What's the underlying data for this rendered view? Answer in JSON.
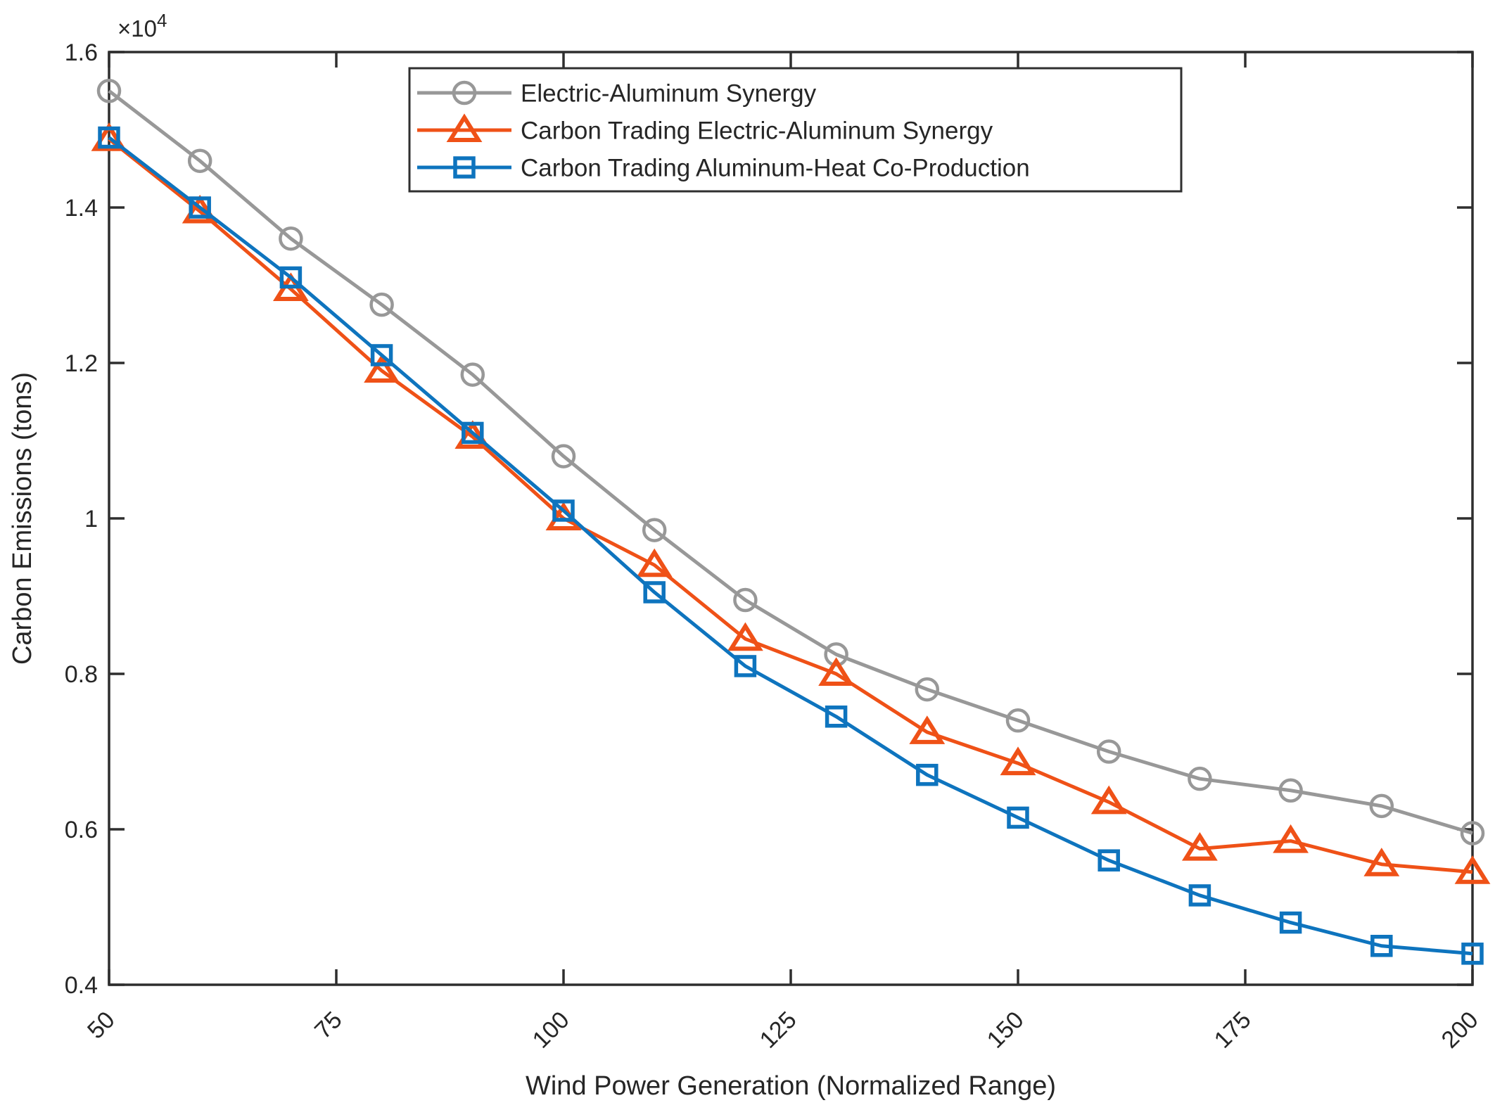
{
  "figure": {
    "background": "#ffffff",
    "axis_color": "#2e2e2e",
    "text_color": "#262626"
  },
  "chart_data": {
    "type": "line",
    "title": "",
    "xlabel": "Wind Power Generation (Normalized Range)",
    "ylabel": "Carbon Emissions (tons)",
    "y_exponent_label": {
      "base": "×10",
      "exp": "4"
    },
    "grid": false,
    "xlim": [
      50,
      200
    ],
    "ylim": [
      4000,
      16000
    ],
    "xticks": {
      "values": [
        50,
        75,
        100,
        125,
        150,
        175,
        200
      ],
      "labels": [
        "50",
        "75",
        "100",
        "125",
        "150",
        "175",
        "200"
      ],
      "rotation": 45
    },
    "yticks": {
      "values": [
        4000,
        6000,
        8000,
        10000,
        12000,
        14000,
        16000
      ],
      "labels": [
        "0.4",
        "0.6",
        "0.8",
        "1",
        "1.2",
        "1.4",
        "1.6"
      ]
    },
    "x": [
      50,
      60,
      70,
      80,
      90,
      100,
      110,
      120,
      130,
      140,
      150,
      160,
      170,
      180,
      190,
      200
    ],
    "series": [
      {
        "name": "Electric-Aluminum Synergy",
        "marker": "circle",
        "color": "#989898",
        "values": [
          15500,
          14600,
          13600,
          12750,
          11850,
          10800,
          9850,
          8950,
          8250,
          7800,
          7400,
          7000,
          6650,
          6500,
          6300,
          5950
        ]
      },
      {
        "name": "Carbon Trading Electric-Aluminum Synergy",
        "marker": "triangle-up",
        "color": "#ef5117",
        "values": [
          14880,
          13950,
          12950,
          11900,
          11050,
          10000,
          9400,
          8450,
          8000,
          7250,
          6850,
          6350,
          5750,
          5850,
          5550,
          5450
        ]
      },
      {
        "name": "Carbon Trading Aluminum-Heat Co-Production",
        "marker": "square",
        "color": "#0e74be",
        "values": [
          14900,
          14000,
          13100,
          12100,
          11100,
          10100,
          9050,
          8100,
          7450,
          6700,
          6150,
          5600,
          5150,
          4800,
          4500,
          4400
        ]
      }
    ],
    "legend": {
      "position": "top-left-inside",
      "border": true,
      "entries": [
        "Electric-Aluminum Synergy",
        "Carbon Trading Electric-Aluminum Synergy",
        "Carbon Trading Aluminum-Heat Co-Production"
      ]
    }
  }
}
